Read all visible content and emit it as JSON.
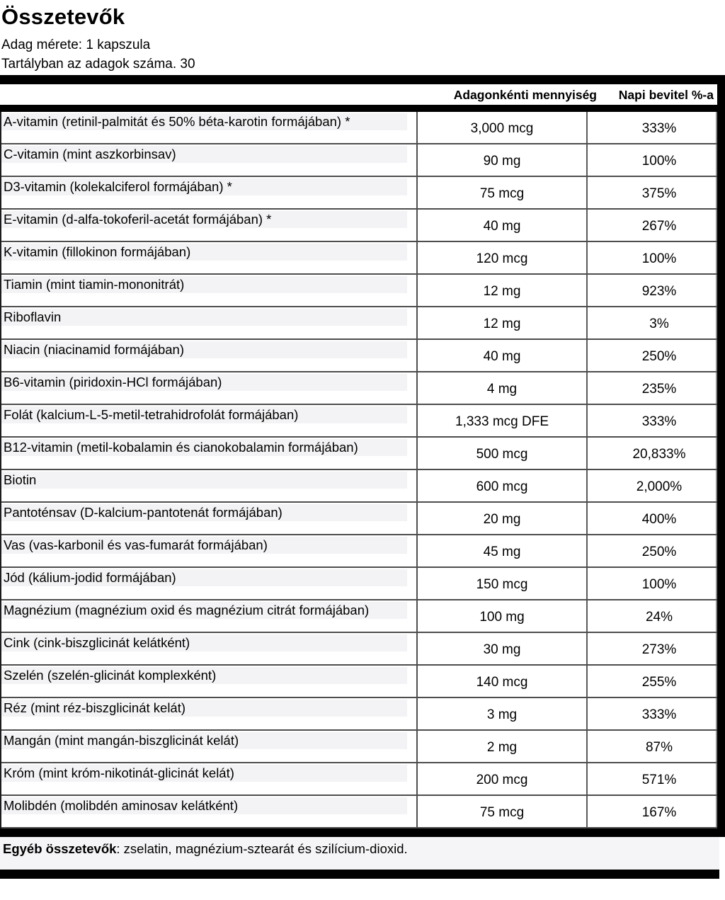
{
  "header": {
    "title": "Összetevők",
    "serving_size_line": "Adag mérete: 1 kapszula",
    "servings_per_container_line": "Tartályban az adagok száma. 30"
  },
  "table": {
    "columns": {
      "amount_header": "Adagonkénti mennyiség",
      "daily_value_header": "Napi bevitel %-a"
    },
    "rows": [
      {
        "name": "A-vitamin (retinil-palmitát és 50% béta-karotin formájában) *",
        "amount": "3,000 mcg",
        "dv": "333%"
      },
      {
        "name": "C-vitamin (mint aszkorbinsav)",
        "amount": "90 mg",
        "dv": "100%"
      },
      {
        "name": "D3-vitamin (kolekalciferol formájában) *",
        "amount": "75 mcg",
        "dv": "375%"
      },
      {
        "name": "E-vitamin (d-alfa-tokoferil-acetát formájában) *",
        "amount": "40 mg",
        "dv": "267%"
      },
      {
        "name": "K-vitamin (fillokinon formájában)",
        "amount": "120 mcg",
        "dv": "100%"
      },
      {
        "name": "Tiamin (mint tiamin-mononitrát)",
        "amount": "12 mg",
        "dv": "923%"
      },
      {
        "name": "Riboflavin",
        "amount": "12 mg",
        "dv": "3%"
      },
      {
        "name": "Niacin (niacinamid formájában)",
        "amount": "40 mg",
        "dv": "250%"
      },
      {
        "name": "B6-vitamin (piridoxin-HCl formájában)",
        "amount": "4 mg",
        "dv": "235%"
      },
      {
        "name": "Folát (kalcium-L-5-metil-tetrahidrofolát formájában)",
        "amount": "1,333 mcg DFE",
        "dv": "333%"
      },
      {
        "name": "B12-vitamin (metil-kobalamin és cianokobalamin formájában)",
        "amount": "500 mcg",
        "dv": "20,833%"
      },
      {
        "name": "Biotin",
        "amount": "600 mcg",
        "dv": "2,000%"
      },
      {
        "name": "Pantoténsav (D-kalcium-pantotenát formájában)",
        "amount": "20 mg",
        "dv": "400%"
      },
      {
        "name": "Vas (vas-karbonil és vas-fumarát formájában)",
        "amount": "45 mg",
        "dv": "250%"
      },
      {
        "name": "Jód (kálium-jodid formájában)",
        "amount": "150 mcg",
        "dv": "100%"
      },
      {
        "name": "Magnézium (magnézium oxid és magnézium citrát formájában)",
        "amount": "100 mg",
        "dv": "24%"
      },
      {
        "name": "Cink (cink-biszglicinát kelátként)",
        "amount": "30 mg",
        "dv": "273%"
      },
      {
        "name": "Szelén (szelén-glicinát komplexként)",
        "amount": "140 mcg",
        "dv": "255%"
      },
      {
        "name": "Réz (mint réz-biszglicinát kelát)",
        "amount": "3 mg",
        "dv": "333%"
      },
      {
        "name": "Mangán (mint mangán-biszglicinát kelát)",
        "amount": "2 mg",
        "dv": "87%"
      },
      {
        "name": "Króm (mint króm-nikotinát-glicinát kelát)",
        "amount": "200 mcg",
        "dv": "571%"
      },
      {
        "name": "Molibdén (molibdén aminosav kelátként)",
        "amount": "75 mcg",
        "dv": "167%"
      }
    ]
  },
  "footer": {
    "other_ingredients_label": "Egyéb összetevők",
    "other_ingredients_text": ": zselatin, magnézium-sztearát és szilícium-dioxid."
  },
  "colors": {
    "bar_black": "#000000",
    "label_band": "#f3f3f5",
    "row_border": "#4d4d4d",
    "footer_band": "#f5f5f7"
  }
}
